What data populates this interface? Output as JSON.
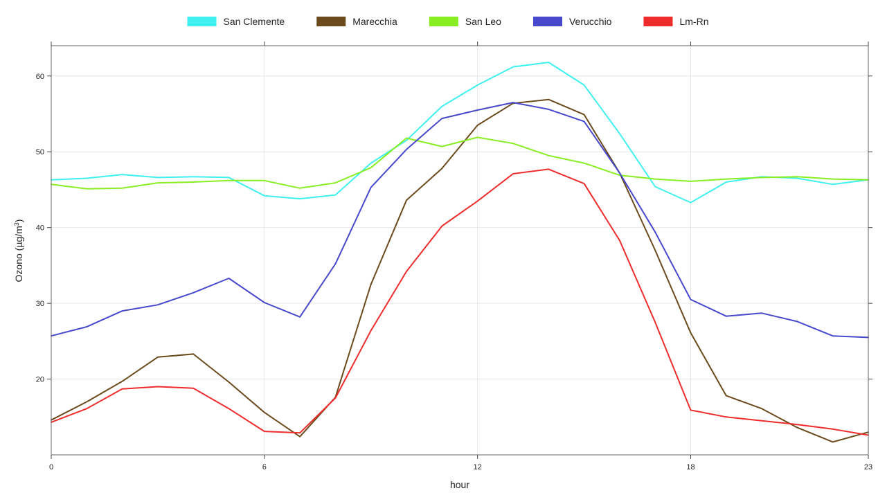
{
  "chart_data": {
    "type": "line",
    "title": "",
    "xlabel": "hour",
    "ylabel": "Ozono (µg/m³)",
    "ylabel_base": "Ozono (µg/m",
    "ylabel_sup": "3",
    "ylabel_close": ")",
    "xlim": [
      0,
      23
    ],
    "ylim": [
      10,
      64
    ],
    "x_ticks": [
      0,
      6,
      12,
      18,
      23
    ],
    "y_ticks": [
      20,
      30,
      40,
      50,
      60
    ],
    "grid": true,
    "legend_position": "top",
    "x": [
      0,
      1,
      2,
      3,
      4,
      5,
      6,
      7,
      8,
      9,
      10,
      11,
      12,
      13,
      14,
      15,
      16,
      17,
      18,
      19,
      20,
      21,
      22,
      23
    ],
    "series": [
      {
        "name": "San Clemente",
        "color": "#40f0f0",
        "values": [
          46.3,
          46.5,
          47.0,
          46.6,
          46.7,
          46.6,
          44.2,
          43.8,
          44.3,
          48.5,
          51.5,
          56.0,
          58.8,
          61.2,
          61.8,
          58.8,
          52.4,
          45.4,
          43.3,
          46.0,
          46.7,
          46.5,
          45.7,
          46.3
        ]
      },
      {
        "name": "Marecchia",
        "color": "#6b4a1c",
        "values": [
          14.6,
          17.0,
          19.7,
          22.9,
          23.3,
          19.6,
          15.6,
          12.4,
          17.6,
          32.5,
          43.6,
          47.8,
          53.5,
          56.4,
          56.9,
          54.9,
          47.2,
          37.0,
          26.1,
          17.8,
          16.1,
          13.6,
          11.7,
          13.0
        ]
      },
      {
        "name": "San Leo",
        "color": "#88ee22",
        "values": [
          45.7,
          45.1,
          45.2,
          45.9,
          46.0,
          46.2,
          46.2,
          45.2,
          45.9,
          47.9,
          51.8,
          50.7,
          51.9,
          51.1,
          49.5,
          48.5,
          46.9,
          46.4,
          46.1,
          46.4,
          46.6,
          46.7,
          46.4,
          46.3
        ]
      },
      {
        "name": "Verucchio",
        "color": "#4848cc",
        "values": [
          25.7,
          26.9,
          29.0,
          29.8,
          31.4,
          33.3,
          30.1,
          28.2,
          35.2,
          45.3,
          50.3,
          54.4,
          55.5,
          56.5,
          55.6,
          54.0,
          47.2,
          39.4,
          30.5,
          28.3,
          28.7,
          27.6,
          25.7,
          25.5
        ]
      },
      {
        "name": "Lm-Rn",
        "color": "#ee2c2c",
        "values": [
          14.3,
          16.1,
          18.7,
          19.0,
          18.8,
          16.1,
          13.1,
          12.9,
          17.5,
          26.4,
          34.2,
          40.2,
          43.5,
          47.1,
          47.7,
          45.8,
          38.3,
          27.5,
          15.9,
          15.0,
          14.5,
          14.0,
          13.4,
          12.6
        ]
      }
    ]
  }
}
